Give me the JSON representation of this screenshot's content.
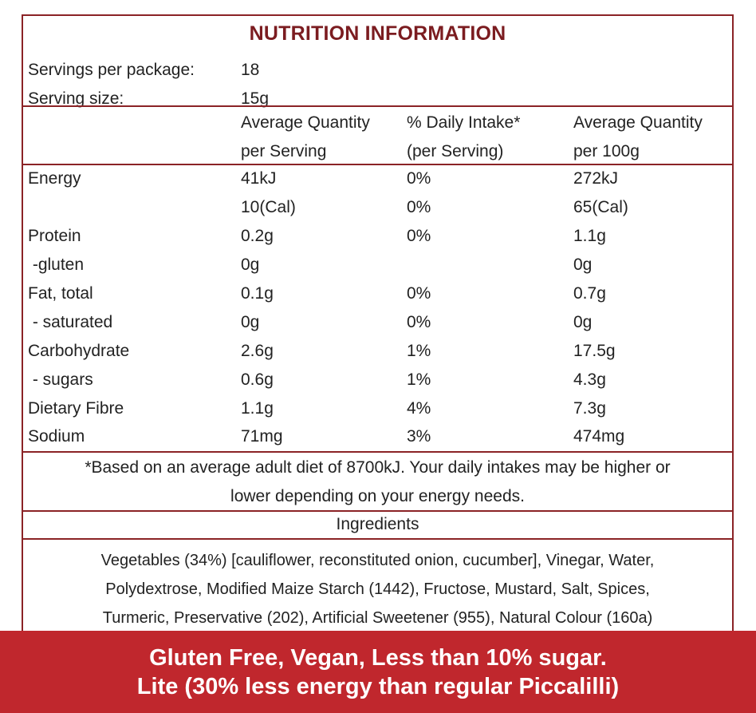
{
  "title": "NUTRITION INFORMATION",
  "servings": {
    "label": "Servings per package:",
    "value": "18"
  },
  "serving_size": {
    "label": "Serving size:",
    "value": "15g"
  },
  "columns": {
    "per_serving_1": "Average Quantity",
    "per_serving_2": "per Serving",
    "daily_1": "% Daily Intake*",
    "daily_2": "(per Serving)",
    "per_100g_1": "Average Quantity",
    "per_100g_2": "per 100g"
  },
  "rows": [
    {
      "name": "Energy",
      "serving": "41kJ",
      "daily": "0%",
      "per100": "272kJ"
    },
    {
      "name": "",
      "serving": "10(Cal)",
      "daily": "0%",
      "per100": "65(Cal)"
    },
    {
      "name": "Protein",
      "serving": "0.2g",
      "daily": "0%",
      "per100": "1.1g"
    },
    {
      "name": " -gluten",
      "serving": "0g",
      "daily": "",
      "per100": "0g"
    },
    {
      "name": "Fat, total",
      "serving": "0.1g",
      "daily": "0%",
      "per100": "0.7g"
    },
    {
      "name": " - saturated",
      "serving": "0g",
      "daily": "0%",
      "per100": "0g"
    },
    {
      "name": "Carbohydrate",
      "serving": "2.6g",
      "daily": "1%",
      "per100": "17.5g"
    },
    {
      "name": " - sugars",
      "serving": "0.6g",
      "daily": "1%",
      "per100": "4.3g"
    },
    {
      "name": "Dietary Fibre",
      "serving": "1.1g",
      "daily": "4%",
      "per100": "7.3g"
    },
    {
      "name": "Sodium",
      "serving": "71mg",
      "daily": "3%",
      "per100": "474mg"
    }
  ],
  "footnote": {
    "line1": "*Based on an average adult diet of 8700kJ. Your daily intakes may be higher or",
    "line2": "lower depending on your energy needs."
  },
  "ingredients": {
    "heading": "Ingredients",
    "line1": "Vegetables (34%) [cauliflower, reconstituted onion, cucumber], Vinegar, Water,",
    "line2": "Polydextrose, Modified Maize Starch (1442), Fructose, Mustard, Salt, Spices,",
    "line3": "Turmeric, Preservative (202), Artificial Sweetener (955), Natural Colour (160a)"
  },
  "banner": {
    "line1": "Gluten Free, Vegan, Less than 10% sugar.",
    "line2": "Lite (30% less energy than regular Piccalilli)"
  },
  "colors": {
    "border": "#8b2326",
    "title": "#7b1c20",
    "banner": "#c0272d",
    "text": "#222222"
  }
}
